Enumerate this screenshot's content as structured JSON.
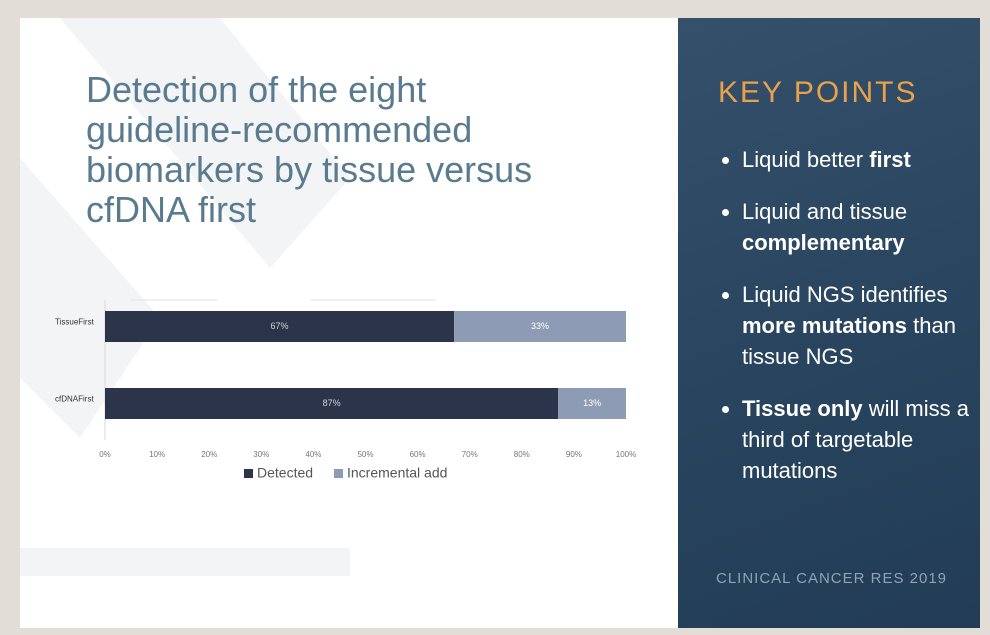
{
  "slide_title": "Detection of the eight guideline-recommended biomarkers by tissue versus cfDNA first",
  "key_points": {
    "heading": "KEY POINTS",
    "items": [
      [
        {
          "text": "Liquid better ",
          "bold": false
        },
        {
          "text": "first",
          "bold": true
        }
      ],
      [
        {
          "text": "Liquid and tissue ",
          "bold": false
        },
        {
          "text": "complementary",
          "bold": true
        }
      ],
      [
        {
          "text": "Liquid NGS identifies ",
          "bold": false
        },
        {
          "text": "more mutations",
          "bold": true
        },
        {
          "text": " than tissue NGS",
          "bold": false
        }
      ],
      [
        {
          "text": "Tissue only",
          "bold": true
        },
        {
          "text": " will miss a third of targetable mutations",
          "bold": false
        }
      ]
    ]
  },
  "source": "CLINICAL CANCER RES 2019",
  "chart_data": {
    "type": "stacked_barh",
    "categories": [
      "TissueFirst",
      "cfDNAFirst"
    ],
    "series": [
      {
        "name": "Detected",
        "color": "#2b3448",
        "values": [
          67,
          87
        ],
        "value_labels": [
          "67%",
          "87%"
        ]
      },
      {
        "name": "Incremental add",
        "color": "#8d9cb4",
        "values": [
          33,
          13
        ],
        "value_labels": [
          "33%",
          "13%"
        ]
      }
    ],
    "xlim": [
      0,
      100
    ],
    "xticks": [
      {
        "value": 0,
        "label": "0%"
      },
      {
        "value": 10,
        "label": "10%"
      },
      {
        "value": 20,
        "label": "20%"
      },
      {
        "value": 30,
        "label": "30%"
      },
      {
        "value": 40,
        "label": "40%"
      },
      {
        "value": 50,
        "label": "50%"
      },
      {
        "value": 60,
        "label": "60%"
      },
      {
        "value": 70,
        "label": "70%"
      },
      {
        "value": 80,
        "label": "80%"
      },
      {
        "value": 90,
        "label": "90%"
      },
      {
        "value": 100,
        "label": "100%"
      }
    ],
    "legend": "bottom"
  }
}
